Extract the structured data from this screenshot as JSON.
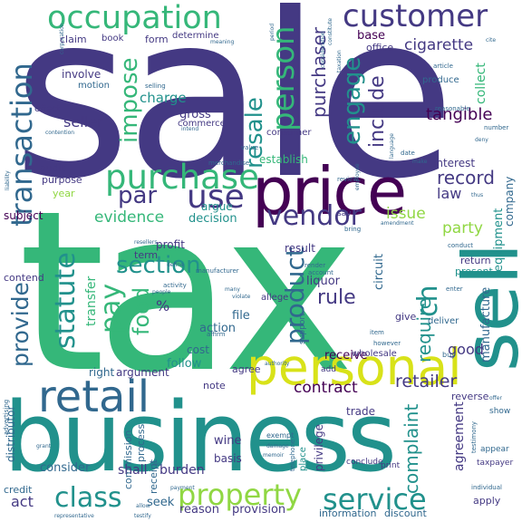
{
  "palette": {
    "indigo": "#443983",
    "purple": "#440154",
    "blue": "#31688e",
    "teal": "#21918c",
    "green": "#35b779",
    "lime": "#90d743",
    "yellow": "#d8e219"
  },
  "words": {
    "sale": "sale",
    "tax": "tax",
    "business": "business",
    "price": "price",
    "personal": "personal",
    "sell": "sell",
    "retail": "retail",
    "purchase": "purchase",
    "occupation": "occupation",
    "customer": "customer",
    "property": "property",
    "service": "service",
    "class": "class",
    "use": "use",
    "vendor": "vendor",
    "section": "section",
    "provide": "provide",
    "statute": "statute",
    "pay": "pay",
    "food": "food",
    "person": "person",
    "product": "product",
    "transaction": "transaction",
    "impose": "impose",
    "resale": "resale",
    "engage": "engage",
    "include": "include",
    "purchaser": "purchaser",
    "tangible": "tangible",
    "record": "record",
    "par": "par",
    "ch": "ch",
    "require": "require",
    "rule": "rule",
    "retailer": "retailer",
    "contract": "contract",
    "evidence": "evidence",
    "issue": "issue",
    "cigarette": "cigarette",
    "charge": "charge",
    "seller": "seller",
    "base": "base",
    "party": "party",
    "law": "law",
    "decision": "decision",
    "act": "act",
    "complaint": "complaint",
    "good": "good",
    "receive": "receive",
    "agreement": "agreement",
    "manufacture": "manufacture",
    "equipment": "equipment",
    "company": "company",
    "collect": "collect",
    "gross": "gross",
    "establish": "establish",
    "interest": "interest",
    "transfer": "transfer",
    "cost": "cost",
    "action": "action",
    "follow": "follow",
    "file": "file",
    "wine": "wine",
    "shall": "shall",
    "burden": "burden",
    "seek": "seek",
    "reason": "reason",
    "provision": "provision",
    "consider": "consider",
    "information": "information",
    "discount": "discount",
    "apply": "apply",
    "return": "return",
    "present": "present",
    "deliver": "deliver",
    "liquor": "liquor",
    "result": "result",
    "circuit": "circuit",
    "term": "term",
    "profit": "profit",
    "argue": "argue",
    "subject": "subject",
    "audit": "audit",
    "purpose": "purpose",
    "year": "year",
    "involve": "involve",
    "motion": "motion",
    "claim": "claim",
    "book": "book",
    "form": "form",
    "determine": "determine",
    "office": "office",
    "produce": "produce",
    "consumer": "consumer",
    "commerce": "commerce",
    "agree": "agree",
    "note": "note",
    "right": "right",
    "argument": "argument",
    "trade": "trade",
    "basis": "basis",
    "credit": "credit",
    "distributor": "distributor",
    "contend": "contend",
    "effect": "effect",
    "percent": "%",
    "give": "give",
    "allege": "allege",
    "say": "say",
    "buy": "buy",
    "conduct": "conduct",
    "enter": "enter",
    "reverse": "reverse",
    "show": "show",
    "appear": "appear",
    "taxpayer": "taxpayer",
    "privilege": "privilege",
    "conclude": "conclude",
    "print": "print",
    "process": "process",
    "receipt": "receipt",
    "commission": "commission",
    "exempt": "exempt",
    "add": "add",
    "support": "support",
    "place": "place",
    "wholesale": "wholesale",
    "render": "render",
    "account": "account",
    "manufacturer": "manufacturer",
    "activity": "activity",
    "affirm": "affirm",
    "merchandise": "merchandise",
    "date": "date",
    "review": "review",
    "however": "however",
    "item": "item",
    "reasonable": "reasonable",
    "article": "article",
    "selling": "selling",
    "number": "number",
    "meaning": "meaning",
    "corporation": "corporation",
    "cite": "cite",
    "intend": "intend",
    "value": "value",
    "bring": "bring",
    "amendment": "amendment",
    "make": "make",
    "employee": "employee",
    "language": "language",
    "individual": "individual",
    "telephone": "telephone",
    "advertising": "advertising",
    "grant": "grant",
    "damage": "damage",
    "offer": "offer",
    "testimony": "testimony",
    "liability": "liability",
    "contention": "contention",
    "payment": "payment",
    "memoir": "memoir",
    "take": "take",
    "authority": "authority",
    "people": "people",
    "define": "define",
    "violate": "violate",
    "many": "many",
    "resellers": "resellers",
    "deny": "deny",
    "thus": "thus",
    "period": "period",
    "taxation": "taxation",
    "constitute": "constitute",
    "consideration": "consideration",
    "representative": "representative",
    "testify": "testify",
    "allow": "allow"
  }
}
